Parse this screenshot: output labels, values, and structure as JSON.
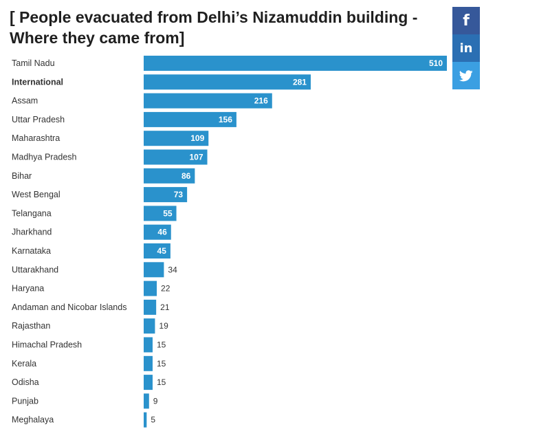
{
  "title": "[ People evacuated from Delhi’s Nizamuddin building - Where they came from]",
  "social": {
    "facebook_glyph": "f",
    "linkedin_glyph": "in",
    "twitter_icon": "twitter-bird-icon",
    "colors": {
      "facebook": "#36589a",
      "linkedin": "#2b6fb3",
      "twitter": "#3b9fe2"
    }
  },
  "colors": {
    "bar": "#2a92cc"
  },
  "chart_data": {
    "type": "bar",
    "orientation": "horizontal",
    "title": "[ People evacuated from Delhi’s Nizamuddin building - Where they came from]",
    "xlabel": "",
    "ylabel": "",
    "xlim": [
      0,
      510
    ],
    "grid": false,
    "legend": "none",
    "bold_categories": [
      "International"
    ],
    "categories": [
      "Tamil Nadu",
      "International",
      "Assam",
      "Uttar Pradesh",
      "Maharashtra",
      "Madhya Pradesh",
      "Bihar",
      "West Bengal",
      "Telangana",
      "Jharkhand",
      "Karnataka",
      "Uttarakhand",
      "Haryana",
      "Andaman and Nicobar Islands",
      "Rajasthan",
      "Himachal Pradesh",
      "Kerala",
      "Odisha",
      "Punjab",
      "Meghalaya"
    ],
    "values": [
      510,
      281,
      216,
      156,
      109,
      107,
      86,
      73,
      55,
      46,
      45,
      34,
      22,
      21,
      19,
      15,
      15,
      15,
      9,
      5
    ]
  }
}
